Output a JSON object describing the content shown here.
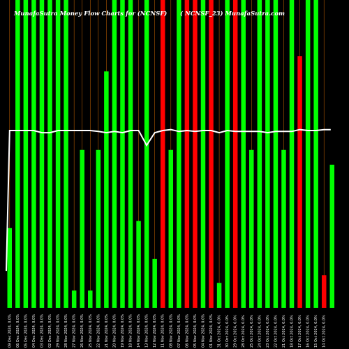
{
  "chart_data": {
    "type": "bar",
    "title": "MunafaSutra Money Flow Charts for ",
    "symbol": "(NCNSF)",
    "subtitle": "(  NCNSF_23)  MunafaSutra.com",
    "colors": {
      "background": "#000000",
      "up": "#00ff00",
      "down": "#ff0000",
      "gridline": "#b35900",
      "line": "#ffffff",
      "label": "#ffffff"
    },
    "grid": true,
    "ylim": [
      0,
      100
    ],
    "line_ylim": [
      0,
      100
    ],
    "categories": [
      "09 Dec 2024, 0.0%",
      "06 Dec 2024, 0.0%",
      "05 Dec 2024, 0.0%",
      "04 Dec 2024, 0.0%",
      "03 Dec 2024, 0.0%",
      "02 Dec 2024, 0.0%",
      "29 Nov 2024, 0.0%",
      "28 Nov 2024, 0.0%",
      "27 Nov 2024, 0.0%",
      "26 Nov 2024, 0.0%",
      "25 Nov 2024, 0.0%",
      "22 Nov 2024, 0.0%",
      "21 Nov 2024, 0.0%",
      "20 Nov 2024, 0.0%",
      "19 Nov 2024, 0.0%",
      "18 Nov 2024, 0.0%",
      "14 Nov 2024, 0.0%",
      "13 Nov 2024, 0.0%",
      "12 Nov 2024, 0.0%",
      "11 Nov 2024, 0.0%",
      "08 Nov 2024, 0.0%",
      "07 Nov 2024, 0.0%",
      "06 Nov 2024, 0.0%",
      "05 Nov 2024, 0.0%",
      "04 Nov 2024, 0.0%",
      "01 Nov 2024, 0.0%",
      "31 Oct 2024, 0.0%",
      "30 Oct 2024, 0.0%",
      "29 Oct 2024, 0.0%",
      "28 Oct 2024, 0.0%",
      "25 Oct 2024, 0.0%",
      "24 Oct 2024, 0.0%",
      "23 Oct 2024, 0.0%",
      "22 Oct 2024, 0.0%",
      "21 Oct 2024, 0.0%",
      "18 Oct 2024, 0.0%",
      "17 Oct 2024, 0.0%",
      "16 Oct 2024, 0.0%",
      "15 Oct 2024, 0.0%",
      "14 Oct 2024, 0.0%"
    ],
    "values": [
      25.9,
      100,
      100,
      100,
      100,
      100,
      100,
      100,
      5.6,
      51.3,
      5.6,
      51.3,
      76.8,
      100,
      100,
      100,
      28.2,
      100,
      15.9,
      100,
      51.3,
      100,
      100,
      100,
      100,
      100,
      8.1,
      100,
      100,
      100,
      51.3,
      100,
      100,
      100,
      51.3,
      100,
      81.8,
      100,
      100,
      10.6
    ],
    "bar_colors": [
      "green",
      "green",
      "green",
      "green",
      "green",
      "green",
      "green",
      "green",
      "green",
      "green",
      "green",
      "green",
      "green",
      "green",
      "green",
      "green",
      "green",
      "green",
      "green",
      "red",
      "green",
      "green",
      "red",
      "red",
      "green",
      "red",
      "green",
      "green",
      "red",
      "green",
      "green",
      "green",
      "green",
      "green",
      "green",
      "green",
      "red",
      "green",
      "green",
      "red"
    ],
    "extra_bar": {
      "value": 46.5,
      "color": "green"
    },
    "line": [
      57.6,
      57.6,
      57.6,
      57.6,
      56.9,
      56.9,
      57.6,
      57.6,
      57.6,
      57.6,
      57.6,
      57.3,
      56.9,
      57.3,
      56.9,
      57.6,
      57.6,
      52.8,
      56.9,
      57.6,
      57.9,
      57.3,
      57.6,
      57.3,
      57.6,
      57.6,
      56.9,
      57.6,
      57.3,
      57.3,
      57.3,
      57.3,
      56.9,
      57.3,
      57.3,
      57.3,
      57.9,
      57.6,
      57.6,
      57.9
    ]
  }
}
